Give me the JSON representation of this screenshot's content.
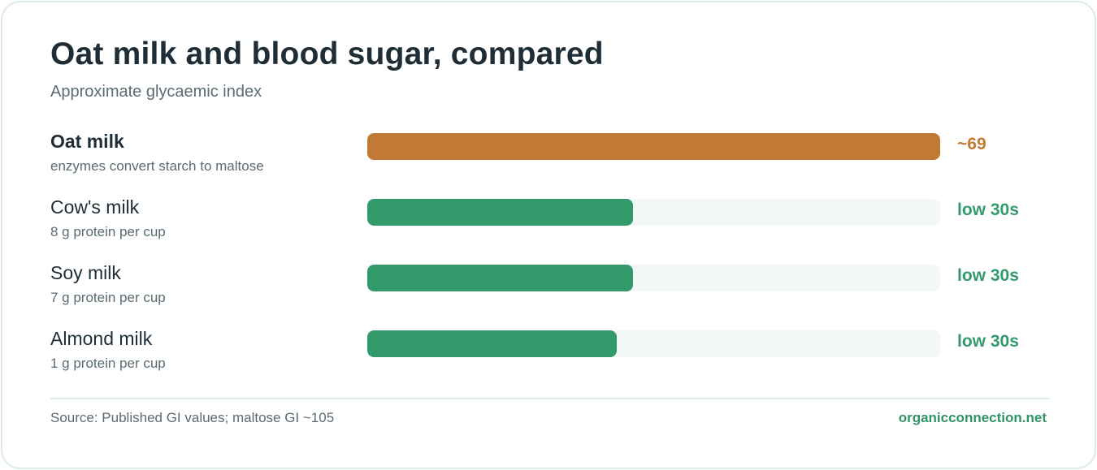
{
  "chart_data": {
    "type": "bar",
    "orientation": "horizontal",
    "title": "Oat milk and blood sugar, compared",
    "subtitle": "Approximate glycaemic index",
    "xlim": [
      0,
      69
    ],
    "grid": false,
    "bars": [
      {
        "category": "Oat milk",
        "note": "enzymes convert starch to maltose",
        "value": 69,
        "label": "~69",
        "color": "#c07a33",
        "emphasis": true
      },
      {
        "category": "Cow's milk",
        "note": "8 g protein per cup",
        "value": 32,
        "label": "low 30s",
        "color": "#339a6b",
        "emphasis": false
      },
      {
        "category": "Soy milk",
        "note": "7 g protein per cup",
        "value": 32,
        "label": "low 30s",
        "color": "#339a6b",
        "emphasis": false
      },
      {
        "category": "Almond milk",
        "note": "1 g protein per cup",
        "value": 30,
        "label": "low 30s",
        "color": "#339a6b",
        "emphasis": false
      }
    ]
  },
  "footer": {
    "source": "Source: Published GI values; maltose GI ~105",
    "brand": "organicconnection.net"
  },
  "colors": {
    "track": "#f2f8f6",
    "border": "#dcece6",
    "text": "#1f2d36",
    "muted": "#5b6b73",
    "brand": "#2f9466"
  }
}
